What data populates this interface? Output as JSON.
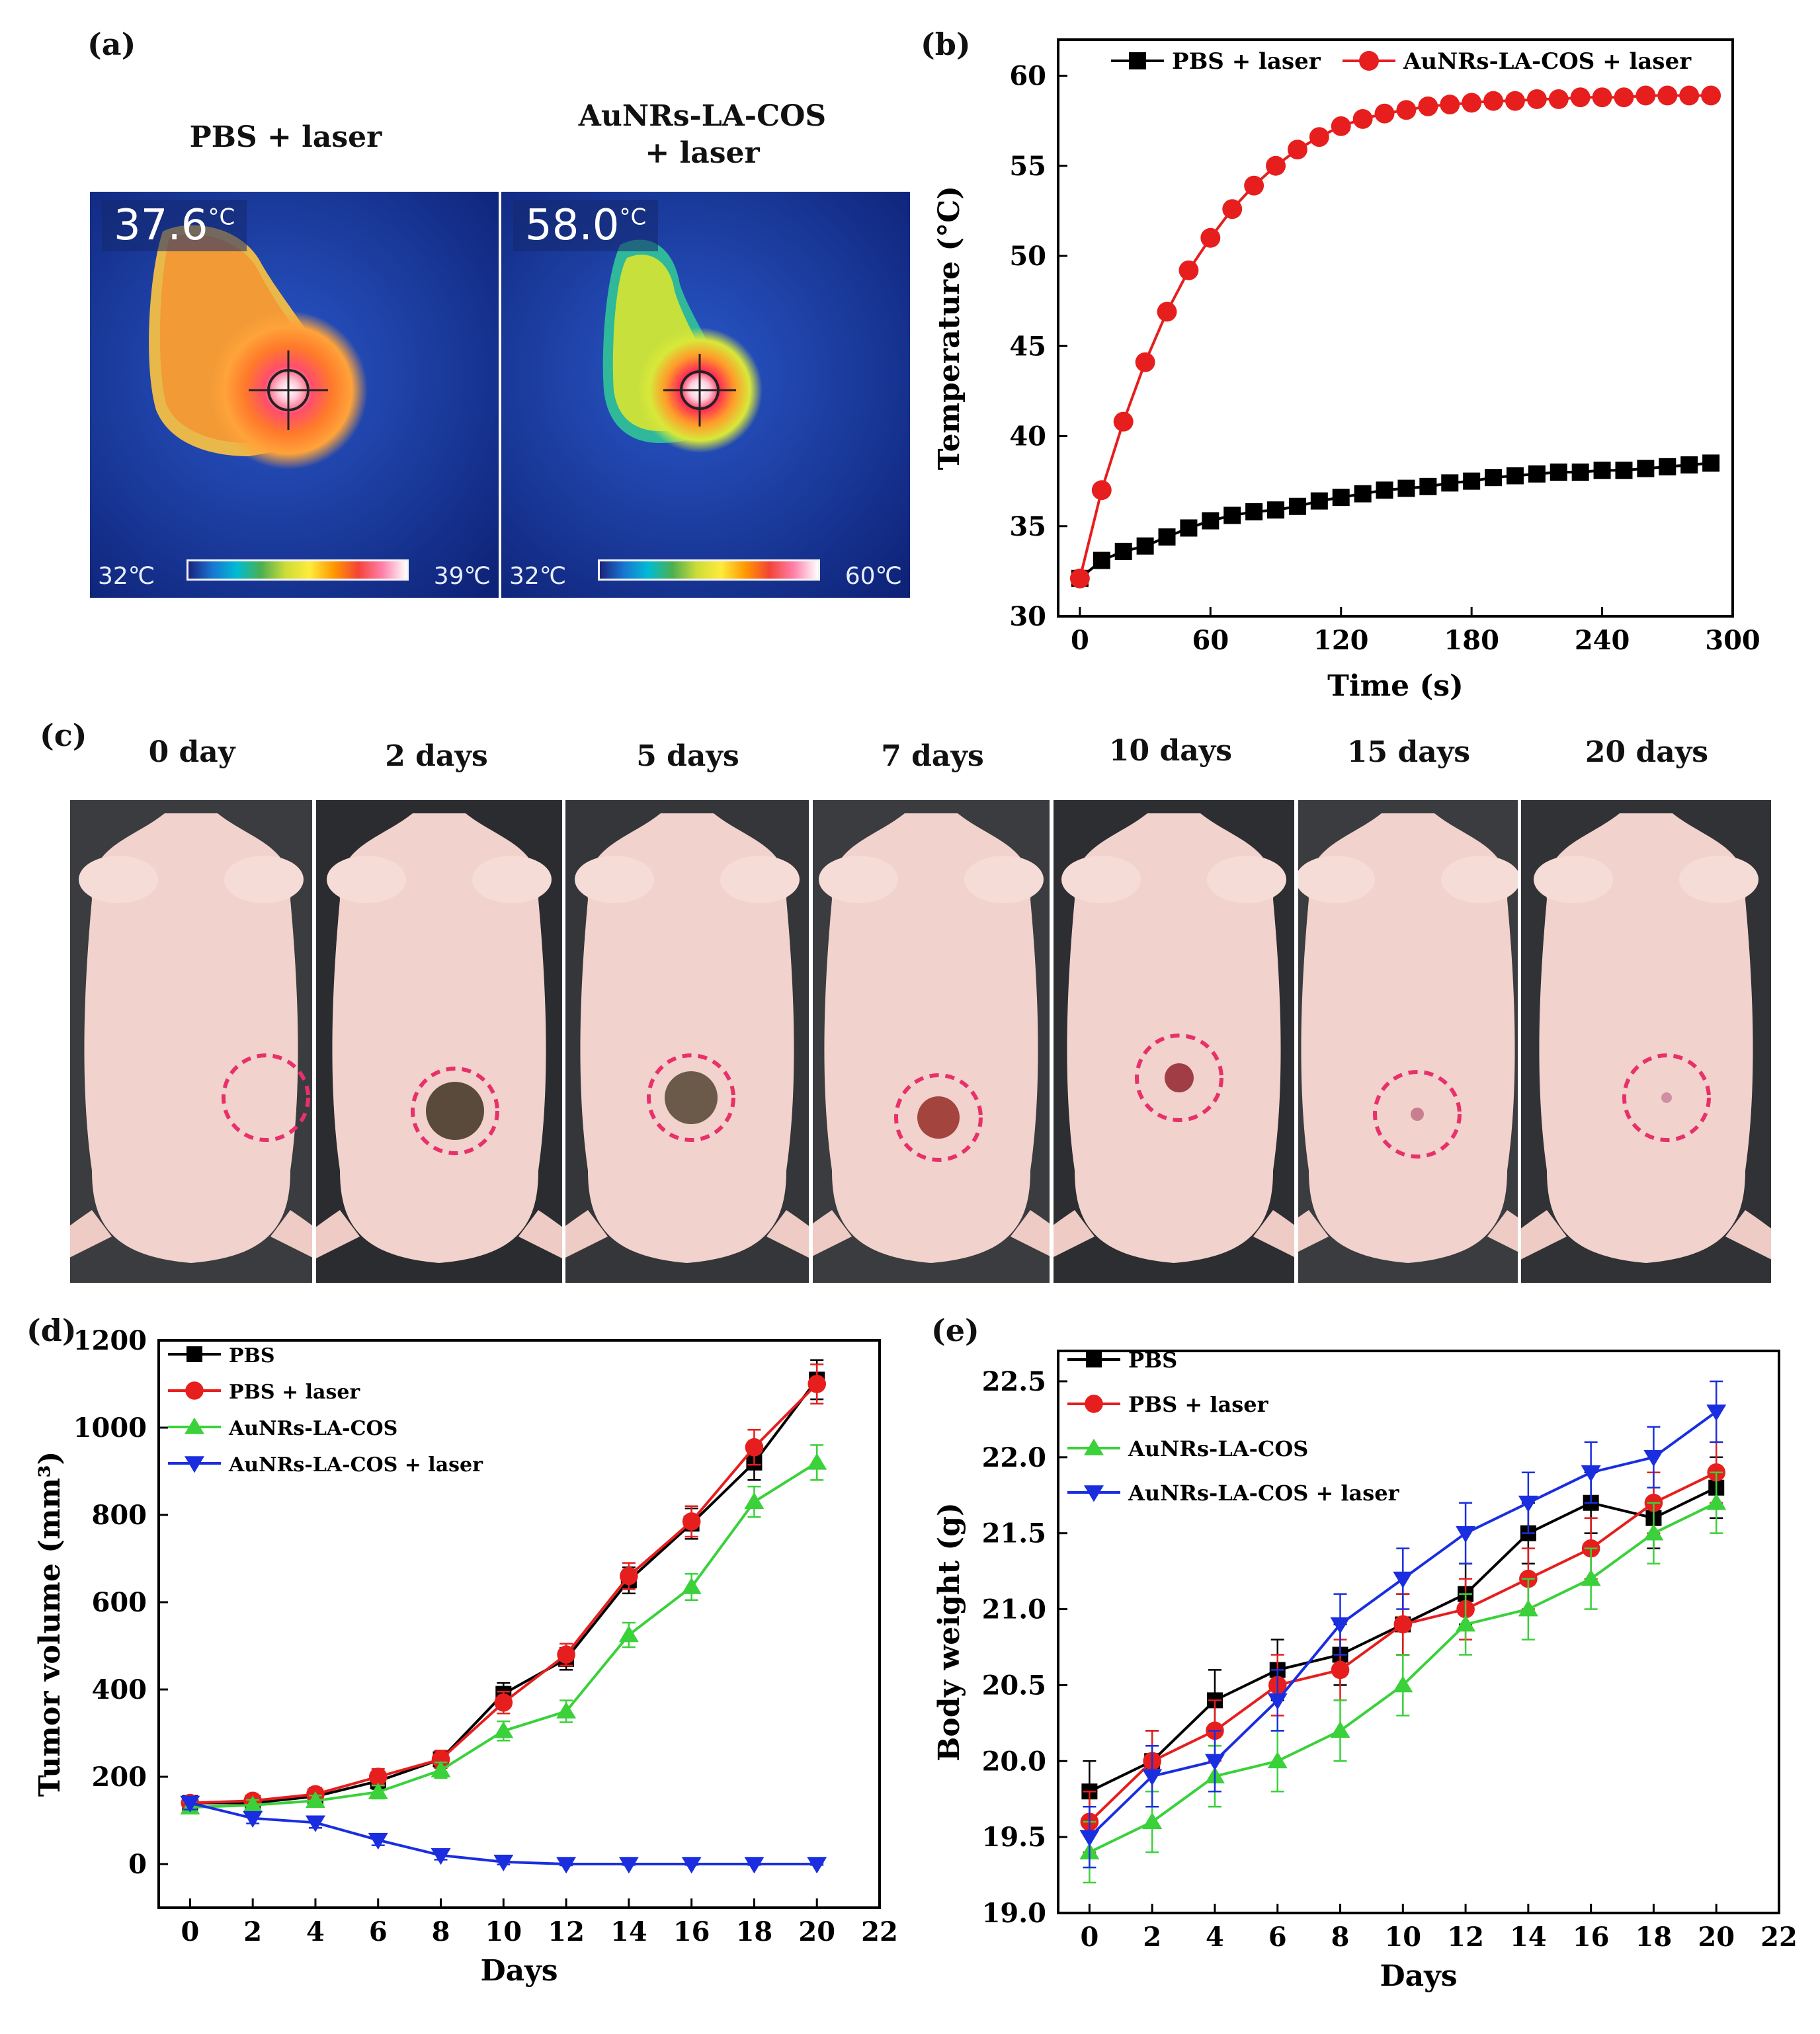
{
  "labels": {
    "a": "(a)",
    "b": "(b)",
    "c": "(c)",
    "d": "(d)",
    "e": "(e)"
  },
  "panel_a": {
    "left": {
      "title": "PBS + laser",
      "temp": "37.6",
      "unit": "°C",
      "scale_min": "32℃",
      "scale_max": "39℃"
    },
    "right": {
      "title_line1": "AuNRs-LA-COS",
      "title_line2": "+ laser",
      "temp": "58.0",
      "unit": "°C",
      "scale_min": "32℃",
      "scale_max": "60℃"
    }
  },
  "panel_c": {
    "days": [
      "0 day",
      "2 days",
      "5 days",
      "7 days",
      "10 days",
      "15 days",
      "20 days"
    ]
  },
  "chart_data": [
    {
      "id": "b",
      "type": "line",
      "xlabel": "Time  (s)",
      "ylabel": "Temperature (°C)",
      "xlim": [
        -10,
        300
      ],
      "ylim": [
        30,
        62
      ],
      "xticks": [
        0,
        60,
        120,
        180,
        240,
        300
      ],
      "yticks": [
        30,
        35,
        40,
        45,
        50,
        55,
        60
      ],
      "legend_position": "top",
      "series": [
        {
          "name": "PBS + laser",
          "color": "#000000",
          "marker": "square",
          "x": [
            0,
            10,
            20,
            30,
            40,
            50,
            60,
            70,
            80,
            90,
            100,
            110,
            120,
            130,
            140,
            150,
            160,
            170,
            180,
            190,
            200,
            210,
            220,
            230,
            240,
            250,
            260,
            270,
            280,
            290
          ],
          "y": [
            32.1,
            33.1,
            33.6,
            33.9,
            34.4,
            34.9,
            35.3,
            35.6,
            35.8,
            35.9,
            36.1,
            36.4,
            36.6,
            36.8,
            37.0,
            37.1,
            37.2,
            37.4,
            37.5,
            37.7,
            37.8,
            37.9,
            38.0,
            38.0,
            38.1,
            38.1,
            38.2,
            38.3,
            38.4,
            38.5
          ]
        },
        {
          "name": "AuNRs-LA-COS + laser",
          "color": "#e61e1e",
          "marker": "circle",
          "x": [
            0,
            10,
            20,
            30,
            40,
            50,
            60,
            70,
            80,
            90,
            100,
            110,
            120,
            130,
            140,
            150,
            160,
            170,
            180,
            190,
            200,
            210,
            220,
            230,
            240,
            250,
            260,
            270,
            280,
            290
          ],
          "y": [
            32.1,
            37.0,
            40.8,
            44.1,
            46.9,
            49.2,
            51.0,
            52.6,
            53.9,
            55.0,
            55.9,
            56.6,
            57.2,
            57.6,
            57.9,
            58.1,
            58.3,
            58.4,
            58.5,
            58.6,
            58.6,
            58.7,
            58.7,
            58.8,
            58.8,
            58.8,
            58.9,
            58.9,
            58.9,
            58.9
          ]
        }
      ]
    },
    {
      "id": "d",
      "type": "line",
      "xlabel": "Days",
      "ylabel": "Tumor volume (mm³)",
      "xlim": [
        -1,
        22
      ],
      "ylim": [
        -100,
        1200
      ],
      "xticks": [
        0,
        2,
        4,
        6,
        8,
        10,
        12,
        14,
        16,
        18,
        20,
        22
      ],
      "yticks": [
        0,
        200,
        400,
        600,
        800,
        1000,
        1200
      ],
      "legend_position": "top-left",
      "series": [
        {
          "name": "PBS",
          "color": "#000000",
          "marker": "square",
          "x": [
            0,
            2,
            4,
            6,
            8,
            10,
            12,
            14,
            16,
            18,
            20
          ],
          "y": [
            140,
            140,
            155,
            190,
            240,
            390,
            470,
            650,
            780,
            920,
            1110
          ],
          "err": [
            15,
            12,
            15,
            18,
            20,
            25,
            25,
            30,
            35,
            40,
            45
          ]
        },
        {
          "name": "PBS + laser",
          "color": "#e61e1e",
          "marker": "circle",
          "x": [
            0,
            2,
            4,
            6,
            8,
            10,
            12,
            14,
            16,
            18,
            20
          ],
          "y": [
            140,
            145,
            160,
            200,
            240,
            370,
            480,
            660,
            785,
            955,
            1100
          ],
          "err": [
            15,
            12,
            15,
            18,
            20,
            25,
            25,
            30,
            35,
            40,
            45
          ]
        },
        {
          "name": "AuNRs-LA-COS",
          "color": "#3ad13a",
          "marker": "triangle-up",
          "x": [
            0,
            2,
            4,
            6,
            8,
            10,
            12,
            14,
            16,
            18,
            20
          ],
          "y": [
            130,
            135,
            145,
            165,
            215,
            305,
            350,
            525,
            635,
            830,
            920
          ],
          "err": [
            12,
            12,
            12,
            15,
            18,
            22,
            25,
            28,
            30,
            35,
            40
          ]
        },
        {
          "name": "AuNRs-LA-COS + laser",
          "color": "#1a2ee0",
          "marker": "triangle-down",
          "x": [
            0,
            2,
            4,
            6,
            8,
            10,
            12,
            14,
            16,
            18,
            20
          ],
          "y": [
            140,
            105,
            95,
            55,
            20,
            5,
            0,
            0,
            0,
            0,
            0
          ],
          "err": [
            15,
            12,
            12,
            12,
            10,
            6,
            3,
            2,
            2,
            2,
            2
          ]
        }
      ]
    },
    {
      "id": "e",
      "type": "line",
      "xlabel": "Days",
      "ylabel": "Body weight (g)",
      "xlim": [
        -1,
        22
      ],
      "ylim": [
        19.0,
        22.7
      ],
      "xticks": [
        0,
        2,
        4,
        6,
        8,
        10,
        12,
        14,
        16,
        18,
        20,
        22
      ],
      "yticks": [
        "19.0",
        "19.5",
        "20.0",
        "20.5",
        "21.0",
        "21.5",
        "22.0",
        "22.5"
      ],
      "legend_position": "top-left",
      "series": [
        {
          "name": "PBS",
          "color": "#000000",
          "marker": "square",
          "x": [
            0,
            2,
            4,
            6,
            8,
            10,
            12,
            14,
            16,
            18,
            20
          ],
          "y": [
            19.8,
            20.0,
            20.4,
            20.6,
            20.7,
            20.9,
            21.1,
            21.5,
            21.7,
            21.6,
            21.8
          ],
          "err": [
            0.2,
            0.2,
            0.2,
            0.2,
            0.2,
            0.2,
            0.2,
            0.2,
            0.2,
            0.2,
            0.2
          ]
        },
        {
          "name": "PBS + laser",
          "color": "#e61e1e",
          "marker": "circle",
          "x": [
            0,
            2,
            4,
            6,
            8,
            10,
            12,
            14,
            16,
            18,
            20
          ],
          "y": [
            19.6,
            20.0,
            20.2,
            20.5,
            20.6,
            20.9,
            21.0,
            21.2,
            21.4,
            21.7,
            21.9
          ],
          "err": [
            0.2,
            0.2,
            0.2,
            0.2,
            0.2,
            0.2,
            0.2,
            0.2,
            0.2,
            0.2,
            0.2
          ]
        },
        {
          "name": "AuNRs-LA-COS",
          "color": "#3ad13a",
          "marker": "triangle-up",
          "x": [
            0,
            2,
            4,
            6,
            8,
            10,
            12,
            14,
            16,
            18,
            20
          ],
          "y": [
            19.4,
            19.6,
            19.9,
            20.0,
            20.2,
            20.5,
            20.9,
            21.0,
            21.2,
            21.5,
            21.7
          ],
          "err": [
            0.2,
            0.2,
            0.2,
            0.2,
            0.2,
            0.2,
            0.2,
            0.2,
            0.2,
            0.2,
            0.2
          ]
        },
        {
          "name": "AuNRs-LA-COS + laser",
          "color": "#1a2ee0",
          "marker": "triangle-down",
          "x": [
            0,
            2,
            4,
            6,
            8,
            10,
            12,
            14,
            16,
            18,
            20
          ],
          "y": [
            19.5,
            19.9,
            20.0,
            20.4,
            20.9,
            21.2,
            21.5,
            21.7,
            21.9,
            22.0,
            22.3
          ],
          "err": [
            0.2,
            0.2,
            0.2,
            0.2,
            0.2,
            0.2,
            0.2,
            0.2,
            0.2,
            0.2,
            0.2
          ]
        }
      ]
    }
  ]
}
